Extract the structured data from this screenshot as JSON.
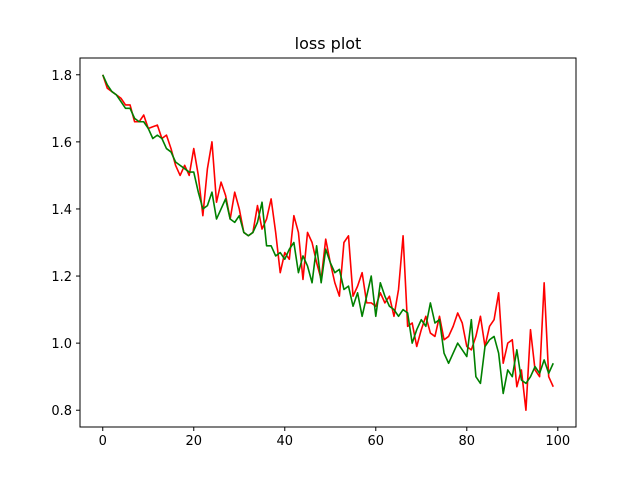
{
  "chart_data": {
    "type": "line",
    "title": "loss plot",
    "xlabel": "",
    "ylabel": "",
    "xlim": [
      -5,
      104
    ],
    "ylim": [
      0.75,
      1.85
    ],
    "xticks": [
      0,
      20,
      40,
      60,
      80,
      100
    ],
    "yticks": [
      0.8,
      1.0,
      1.2,
      1.4,
      1.6,
      1.8
    ],
    "xtick_labels": [
      "0",
      "20",
      "40",
      "60",
      "80",
      "100"
    ],
    "ytick_labels": [
      "0.8",
      "1.0",
      "1.2",
      "1.4",
      "1.6",
      "1.8"
    ],
    "grid": false,
    "series": [
      {
        "name": "red",
        "color": "#ff0000",
        "x": [
          0,
          1,
          2,
          3,
          4,
          5,
          6,
          7,
          8,
          9,
          10,
          11,
          12,
          13,
          14,
          15,
          16,
          17,
          18,
          19,
          20,
          21,
          22,
          23,
          24,
          25,
          26,
          27,
          28,
          29,
          30,
          31,
          32,
          33,
          34,
          35,
          36,
          37,
          38,
          39,
          40,
          41,
          42,
          43,
          44,
          45,
          46,
          47,
          48,
          49,
          50,
          51,
          52,
          53,
          54,
          55,
          56,
          57,
          58,
          59,
          60,
          61,
          62,
          63,
          64,
          65,
          66,
          67,
          68,
          69,
          70,
          71,
          72,
          73,
          74,
          75,
          76,
          77,
          78,
          79,
          80,
          81,
          82,
          83,
          84,
          85,
          86,
          87,
          88,
          89,
          90,
          91,
          92,
          93,
          94,
          95,
          96,
          97,
          98,
          99
        ],
        "values": [
          1.8,
          1.76,
          1.75,
          1.74,
          1.73,
          1.71,
          1.71,
          1.66,
          1.66,
          1.68,
          1.64,
          1.645,
          1.65,
          1.61,
          1.62,
          1.58,
          1.53,
          1.5,
          1.53,
          1.5,
          1.58,
          1.5,
          1.38,
          1.52,
          1.6,
          1.42,
          1.48,
          1.44,
          1.37,
          1.45,
          1.4,
          1.33,
          1.32,
          1.33,
          1.41,
          1.34,
          1.37,
          1.43,
          1.33,
          1.21,
          1.27,
          1.25,
          1.38,
          1.33,
          1.19,
          1.33,
          1.3,
          1.24,
          1.19,
          1.31,
          1.24,
          1.18,
          1.14,
          1.3,
          1.32,
          1.14,
          1.17,
          1.21,
          1.12,
          1.12,
          1.11,
          1.15,
          1.12,
          1.14,
          1.08,
          1.16,
          1.32,
          1.05,
          1.06,
          0.99,
          1.04,
          1.08,
          1.03,
          1.02,
          1.08,
          1.01,
          1.02,
          1.05,
          1.09,
          1.06,
          0.99,
          0.98,
          1.02,
          1.08,
          0.99,
          1.05,
          1.07,
          1.15,
          0.94,
          1.0,
          1.01,
          0.87,
          0.92,
          0.8,
          1.04,
          0.92,
          0.9,
          1.18,
          0.9,
          0.87
        ]
      },
      {
        "name": "green",
        "color": "#008000",
        "x": [
          0,
          1,
          2,
          3,
          4,
          5,
          6,
          7,
          8,
          9,
          10,
          11,
          12,
          13,
          14,
          15,
          16,
          17,
          18,
          19,
          20,
          21,
          22,
          23,
          24,
          25,
          26,
          27,
          28,
          29,
          30,
          31,
          32,
          33,
          34,
          35,
          36,
          37,
          38,
          39,
          40,
          41,
          42,
          43,
          44,
          45,
          46,
          47,
          48,
          49,
          50,
          51,
          52,
          53,
          54,
          55,
          56,
          57,
          58,
          59,
          60,
          61,
          62,
          63,
          64,
          65,
          66,
          67,
          68,
          69,
          70,
          71,
          72,
          73,
          74,
          75,
          76,
          77,
          78,
          79,
          80,
          81,
          82,
          83,
          84,
          85,
          86,
          87,
          88,
          89,
          90,
          91,
          92,
          93,
          94,
          95,
          96,
          97,
          98,
          99
        ],
        "values": [
          1.8,
          1.77,
          1.75,
          1.74,
          1.72,
          1.7,
          1.7,
          1.67,
          1.66,
          1.66,
          1.64,
          1.61,
          1.62,
          1.61,
          1.58,
          1.57,
          1.54,
          1.53,
          1.52,
          1.51,
          1.51,
          1.45,
          1.4,
          1.41,
          1.45,
          1.37,
          1.4,
          1.43,
          1.37,
          1.36,
          1.38,
          1.33,
          1.32,
          1.33,
          1.36,
          1.42,
          1.29,
          1.29,
          1.26,
          1.27,
          1.25,
          1.28,
          1.3,
          1.21,
          1.26,
          1.23,
          1.18,
          1.29,
          1.18,
          1.28,
          1.24,
          1.21,
          1.22,
          1.16,
          1.17,
          1.11,
          1.15,
          1.08,
          1.14,
          1.2,
          1.08,
          1.18,
          1.14,
          1.11,
          1.1,
          1.08,
          1.1,
          1.09,
          1.0,
          1.04,
          1.07,
          1.05,
          1.12,
          1.06,
          1.07,
          0.97,
          0.94,
          0.97,
          1.0,
          0.98,
          0.96,
          1.07,
          0.9,
          0.88,
          0.99,
          1.01,
          1.02,
          0.97,
          0.85,
          0.92,
          0.9,
          0.98,
          0.89,
          0.88,
          0.9,
          0.93,
          0.91,
          0.95,
          0.91,
          0.94
        ]
      }
    ]
  }
}
